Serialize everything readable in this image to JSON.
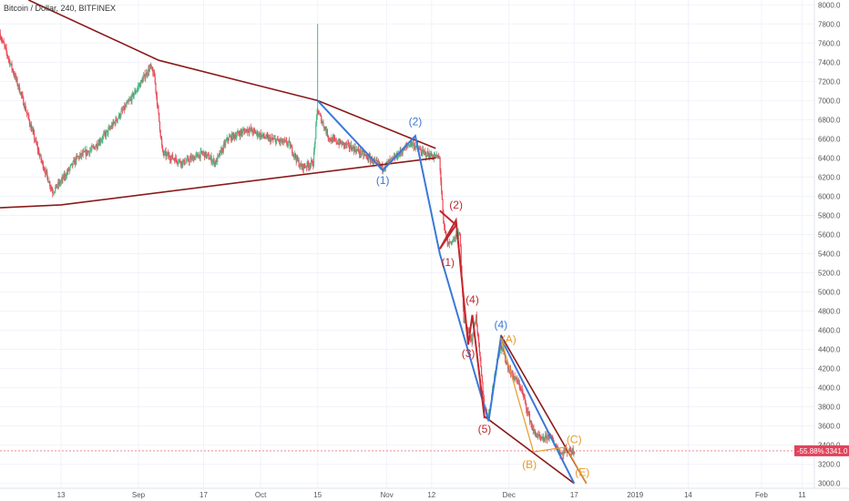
{
  "header": {
    "title": "Bitcoin / Dollar, 240, BITFINEX"
  },
  "price_tag": {
    "change": "-55.88%",
    "value": "3341.0",
    "price": 3341,
    "color": "#e0445a"
  },
  "colors": {
    "up": "#53b987",
    "down": "#eb4d5c",
    "trendline": "#8b1a1a",
    "blue_wave": "#3b78d8",
    "red_wave": "#c0282d",
    "orange_wave": "#e69b2b"
  },
  "chart_data": {
    "type": "candlestick",
    "title": "Bitcoin / Dollar, 240, BITFINEX",
    "y_ticks": [
      3000,
      3200,
      3400,
      3600,
      3800,
      4000,
      4200,
      4400,
      4600,
      4800,
      5000,
      5200,
      5400,
      5600,
      5800,
      6000,
      6200,
      6400,
      6600,
      6800,
      7000,
      7200,
      7400,
      7600,
      7800,
      8000
    ],
    "y_tick_labels": [
      "3000.0",
      "3200.0",
      "3400.0",
      "3600.0",
      "3800.0",
      "4000.0",
      "4200.0",
      "4400.0",
      "4600.0",
      "4800.0",
      "5000.0",
      "5200.0",
      "5400.0",
      "5600.0",
      "5800.0",
      "6000.0",
      "6200.0",
      "6400.0",
      "6600.0",
      "6800.0",
      "7000.0",
      "7200.0",
      "7400.0",
      "7600.0",
      "7800.0",
      "8000.0"
    ],
    "ylim": [
      2950,
      8050
    ],
    "x_range": [
      "2018-07-29",
      "2019-02-14"
    ],
    "x_ticks": [
      {
        "label": "13",
        "date": "2018-08-13"
      },
      {
        "label": "Sep",
        "date": "2018-09-01"
      },
      {
        "label": "17",
        "date": "2018-09-17"
      },
      {
        "label": "Oct",
        "date": "2018-10-01"
      },
      {
        "label": "15",
        "date": "2018-10-15"
      },
      {
        "label": "Nov",
        "date": "2018-11-01"
      },
      {
        "label": "12",
        "date": "2018-11-12"
      },
      {
        "label": "Dec",
        "date": "2018-12-01"
      },
      {
        "label": "17",
        "date": "2018-12-17"
      },
      {
        "label": "2019",
        "date": "2019-01-01"
      },
      {
        "label": "14",
        "date": "2019-01-14"
      },
      {
        "label": "Feb",
        "date": "2019-02-01"
      },
      {
        "label": "11",
        "date": "2019-02-11"
      }
    ],
    "price_path": [
      [
        "2018-07-29",
        7700
      ],
      [
        "2018-08-03",
        7100
      ],
      [
        "2018-08-08",
        6400
      ],
      [
        "2018-08-11",
        6050
      ],
      [
        "2018-08-13",
        6150
      ],
      [
        "2018-08-17",
        6400
      ],
      [
        "2018-08-21",
        6500
      ],
      [
        "2018-08-25",
        6700
      ],
      [
        "2018-08-30",
        7000
      ],
      [
        "2018-09-04",
        7350
      ],
      [
        "2018-09-05",
        7250
      ],
      [
        "2018-09-07",
        6450
      ],
      [
        "2018-09-12",
        6350
      ],
      [
        "2018-09-17",
        6450
      ],
      [
        "2018-09-20",
        6350
      ],
      [
        "2018-09-23",
        6600
      ],
      [
        "2018-09-28",
        6700
      ],
      [
        "2018-10-03",
        6600
      ],
      [
        "2018-10-08",
        6550
      ],
      [
        "2018-10-11",
        6300
      ],
      [
        "2018-10-14",
        6350
      ],
      [
        "2018-10-15",
        6900
      ],
      [
        "2018-10-18",
        6600
      ],
      [
        "2018-10-24",
        6500
      ],
      [
        "2018-10-31",
        6300
      ],
      [
        "2018-11-03",
        6400
      ],
      [
        "2018-11-07",
        6560
      ],
      [
        "2018-11-10",
        6450
      ],
      [
        "2018-11-14",
        6400
      ],
      [
        "2018-11-15",
        5700
      ],
      [
        "2018-11-16",
        5500
      ],
      [
        "2018-11-19",
        5600
      ],
      [
        "2018-11-20",
        4700
      ],
      [
        "2018-11-22",
        4500
      ],
      [
        "2018-11-23",
        4750
      ],
      [
        "2018-11-25",
        3800
      ],
      [
        "2018-11-26",
        3700
      ],
      [
        "2018-11-28",
        4250
      ],
      [
        "2018-11-29",
        4450
      ],
      [
        "2018-12-01",
        4200
      ],
      [
        "2018-12-04",
        4000
      ],
      [
        "2018-12-07",
        3550
      ],
      [
        "2018-12-09",
        3450
      ],
      [
        "2018-12-11",
        3500
      ],
      [
        "2018-12-14",
        3300
      ],
      [
        "2018-12-15",
        3350
      ],
      [
        "2018-12-17",
        3341
      ]
    ],
    "spikes": [
      [
        "2018-10-15",
        6900,
        7800
      ]
    ],
    "trendlines": [
      {
        "name": "upper-triangle-line",
        "from": [
          "2018-08-05",
          8050
        ],
        "to": [
          "2018-11-13",
          6500
        ],
        "via": [
          [
            "2018-09-06",
            7420
          ],
          [
            "2018-10-15",
            7000
          ]
        ]
      },
      {
        "name": "lower-triangle-line",
        "from": [
          "2018-07-29",
          5880
        ],
        "to": [
          "2018-11-13",
          6400
        ],
        "via": [
          [
            "2018-08-13",
            5910
          ]
        ]
      },
      {
        "name": "falling-channel-upper",
        "from": [
          "2018-11-29",
          4550
        ],
        "to": [
          "2018-12-20",
          3000
        ]
      },
      {
        "name": "falling-channel-lower",
        "from": [
          "2018-11-25",
          3700
        ],
        "to": [
          "2018-12-17",
          3000
        ]
      }
    ],
    "waves": [
      {
        "name": "blue-wave-a",
        "color": "blue",
        "points": [
          [
            "2018-10-15",
            7000
          ],
          [
            "2018-10-31",
            6270
          ],
          [
            "2018-11-08",
            6630
          ],
          [
            "2018-11-14",
            5400
          ]
        ]
      },
      {
        "name": "blue-wave-b",
        "color": "blue",
        "points": [
          [
            "2018-11-14",
            5400
          ],
          [
            "2018-11-26",
            3650
          ],
          [
            "2018-11-29",
            4520
          ],
          [
            "2018-12-17",
            3000
          ]
        ]
      },
      {
        "name": "red-wave",
        "color": "red",
        "points": [
          [
            "2018-11-14",
            5850
          ],
          [
            "2018-11-18",
            5700
          ],
          [
            "2018-11-14",
            5450
          ],
          [
            "2018-11-18",
            5750
          ],
          [
            "2018-11-21",
            4450
          ],
          [
            "2018-11-22",
            4760
          ],
          [
            "2018-11-25",
            3680
          ]
        ]
      },
      {
        "name": "orange-wave",
        "color": "orange",
        "points": [
          [
            "2018-11-29",
            4520
          ],
          [
            "2018-12-07",
            3330
          ],
          [
            "2018-12-15",
            3380
          ],
          [
            "2018-12-20",
            3000
          ]
        ]
      }
    ],
    "annotations": [
      {
        "text": "(1)",
        "color": "blue",
        "at": [
          "2018-10-31",
          6130
        ]
      },
      {
        "text": "(2)",
        "color": "blue",
        "at": [
          "2018-11-08",
          6740
        ]
      },
      {
        "text": "(4)",
        "color": "blue",
        "at": [
          "2018-11-29",
          4620
        ]
      },
      {
        "text": "(2)",
        "color": "red",
        "at": [
          "2018-11-18",
          5870
        ]
      },
      {
        "text": "(1)",
        "color": "red",
        "at": [
          "2018-11-16",
          5270
        ]
      },
      {
        "text": "(4)",
        "color": "red",
        "at": [
          "2018-11-22",
          4880
        ]
      },
      {
        "text": "(3)",
        "color": "red",
        "at": [
          "2018-11-21",
          4320
        ]
      },
      {
        "text": "(5)",
        "color": "red",
        "at": [
          "2018-11-25",
          3530
        ]
      },
      {
        "text": "(A)",
        "color": "orange",
        "at": [
          "2018-12-01",
          4470
        ]
      },
      {
        "text": "(B)",
        "color": "orange",
        "at": [
          "2018-12-06",
          3160
        ]
      },
      {
        "text": "(C)",
        "color": "orange",
        "at": [
          "2018-12-17",
          3420
        ]
      },
      {
        "text": "(E)",
        "color": "orange",
        "at": [
          "2018-12-19",
          3080
        ]
      }
    ]
  }
}
